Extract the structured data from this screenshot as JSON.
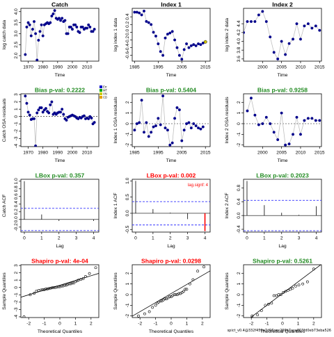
{
  "footer_text": "spict_v0.4@332f459e7d96cec206b7aca803fd0eb73eba526",
  "colors": {
    "pass": "#228B22",
    "fail": "#FF0000",
    "title_plain": "#000000",
    "points": "#00008B",
    "line": "#BFBFBF",
    "ci": "#3333FF",
    "lag_note": "#FF0000"
  },
  "chart_data": [
    {
      "type": "scatter",
      "panel": "catch-data",
      "title": "Catch",
      "title_status": "plain",
      "xlabel": "Time",
      "ylabel": "log catch data",
      "xlim": [
        1965,
        2018
      ],
      "ylim": [
        1.75,
        4.15
      ],
      "xticks": [
        1970,
        1980,
        1990,
        2000,
        2010
      ],
      "yticks": [
        2.0,
        2.5,
        3.0,
        3.5,
        4.0
      ],
      "connect": true,
      "x": [
        1968,
        1969,
        1970,
        1971,
        1972,
        1973,
        1974,
        1975,
        1976,
        1977,
        1978,
        1979,
        1980,
        1981,
        1982,
        1983,
        1984,
        1985,
        1986,
        1987,
        1988,
        1989,
        1990,
        1991,
        1992,
        1993,
        1994,
        1995,
        1996,
        1997,
        1998,
        1999,
        2000,
        2001,
        2002,
        2003,
        2004,
        2005,
        2006,
        2007,
        2008,
        2009,
        2010,
        2011,
        2012,
        2013,
        2014,
        2015
      ],
      "y": [
        2.05,
        3.3,
        3.5,
        3.4,
        2.9,
        3.2,
        3.55,
        3.0,
        1.8,
        2.7,
        3.1,
        3.4,
        2.9,
        3.4,
        3.45,
        3.5,
        3.45,
        3.5,
        3.8,
        3.9,
        4.05,
        3.7,
        3.65,
        3.7,
        3.6,
        3.7,
        3.55,
        3.6,
        3.0,
        3.0,
        3.3,
        3.3,
        3.2,
        3.4,
        3.4,
        3.3,
        3.1,
        3.05,
        3.3,
        3.3,
        3.2,
        3.25,
        3.25,
        3.4,
        3.3,
        3.1,
        3.1,
        3.2
      ]
    },
    {
      "type": "scatter",
      "panel": "index1-data",
      "title": "Index 1",
      "title_status": "plain",
      "xlabel": "Time",
      "ylabel": "log index 1 data",
      "xlim": [
        1984,
        2017
      ],
      "ylim": [
        -0.75,
        0.62
      ],
      "xticks": [
        1985,
        1995,
        2005,
        2015
      ],
      "yticks": [
        -0.6,
        -0.4,
        -0.2,
        0.0,
        0.2,
        0.4
      ],
      "connect": true,
      "x": [
        1985,
        1986,
        1987,
        1988,
        1989,
        1990,
        1991,
        1992,
        1993,
        1994,
        1995,
        1996,
        1997,
        1998,
        1999,
        2000,
        2001,
        2002,
        2003,
        2004,
        2005,
        2006,
        2007,
        2008,
        2009,
        2010,
        2011,
        2012,
        2013,
        2014
      ],
      "y": [
        0.52,
        0.52,
        0.5,
        0.45,
        0.55,
        0.28,
        0.25,
        0.2,
        0.0,
        -0.1,
        -0.3,
        -0.5,
        -0.6,
        -0.15,
        -0.05,
        -0.02,
        0.02,
        -0.2,
        -0.4,
        -0.6,
        -0.7,
        -0.45,
        -0.3,
        -0.4,
        -0.35,
        -0.32,
        -0.35,
        -0.3,
        -0.32,
        -0.28
      ],
      "highlight": [
        {
          "x": 2015,
          "y": -0.25,
          "color": "#D4C400"
        }
      ]
    },
    {
      "type": "scatter",
      "panel": "index2-data",
      "title": "Index 2",
      "title_status": "plain",
      "xlabel": "Time",
      "ylabel": "log index 2 data",
      "xlim": [
        1995,
        2015.5
      ],
      "ylim": [
        3.55,
        4.75
      ],
      "xticks": [
        2000,
        2005,
        2010,
        2015
      ],
      "yticks": [
        3.6,
        3.8,
        4.0,
        4.2,
        4.4
      ],
      "connect": true,
      "x": [
        1995,
        1996,
        1997,
        1998,
        1999,
        2000,
        2001,
        2002,
        2003,
        2004,
        2005,
        2006,
        2007,
        2008,
        2009,
        2010,
        2011,
        2012,
        2013,
        2014,
        2015
      ],
      "y": [
        4.2,
        4.45,
        4.45,
        4.45,
        4.6,
        4.68,
        4.45,
        4.1,
        3.75,
        3.6,
        4.0,
        3.7,
        3.95,
        4.05,
        4.4,
        4.05,
        4.35,
        4.4,
        4.3,
        4.35,
        4.25
      ]
    },
    {
      "type": "scatter",
      "panel": "catch-osa",
      "title": "Bias p-val: 0.2222",
      "title_status": "pass",
      "xlabel": "Time",
      "ylabel": "Catch OSA residuals",
      "xlim": [
        1965,
        2018
      ],
      "ylim": [
        -4.1,
        3.1
      ],
      "xticks": [
        1970,
        1980,
        1990,
        2000,
        2010
      ],
      "yticks": [
        -4,
        -3,
        -2,
        -1,
        0,
        1,
        2,
        3
      ],
      "connect": true,
      "zero_line": true,
      "legend": [
        "Err",
        "MT",
        "VN",
        "CD"
      ],
      "legend_colors": [
        "#0000CC",
        "#00AA00",
        "#CCCC00",
        "#E69F00"
      ],
      "x": [
        1968,
        1969,
        1970,
        1971,
        1972,
        1973,
        1974,
        1975,
        1976,
        1977,
        1978,
        1979,
        1980,
        1981,
        1982,
        1983,
        1984,
        1985,
        1986,
        1987,
        1988,
        1989,
        1990,
        1991,
        1992,
        1993,
        1994,
        1995,
        1996,
        1997,
        1998,
        1999,
        2000,
        2001,
        2002,
        2003,
        2004,
        2005,
        2006,
        2007,
        2008,
        2009,
        2010,
        2011,
        2012,
        2013,
        2014,
        2015
      ],
      "y": [
        2.8,
        1.8,
        0.6,
        0.2,
        -0.4,
        -0.3,
        -0.3,
        -4.0,
        0.5,
        0.9,
        1.2,
        1.2,
        0.6,
        0.9,
        1.1,
        0.7,
        0.5,
        1.6,
        2.0,
        0.3,
        0.5,
        0.3,
        0.5,
        0.6,
        0.6,
        1.0,
        0.3,
        -0.3,
        -0.5,
        -0.1,
        0.0,
        0.1,
        0.2,
        0.1,
        0.0,
        -0.2,
        -0.3,
        -0.1,
        -0.2,
        0.0,
        0.1,
        -0.3,
        -0.2,
        -0.3,
        0.0,
        -0.2,
        -1.0,
        -0.8
      ]
    },
    {
      "type": "scatter",
      "panel": "index1-osa",
      "title": "Bias p-val: 0.5404",
      "title_status": "pass",
      "xlabel": "Time",
      "ylabel": "Index 1 OSA residuals",
      "xlim": [
        1984,
        2017
      ],
      "ylim": [
        -2.15,
        2.8
      ],
      "xticks": [
        1985,
        1995,
        2005,
        2015
      ],
      "yticks": [
        -2,
        -1,
        0,
        1,
        2
      ],
      "connect": true,
      "zero_line": true,
      "x": [
        1985,
        1986,
        1987,
        1988,
        1989,
        1990,
        1991,
        1992,
        1993,
        1994,
        1995,
        1996,
        1997,
        1998,
        1999,
        2000,
        2001,
        2002,
        2003,
        2004,
        2005,
        2006,
        2007,
        2008,
        2009,
        2010,
        2011,
        2012,
        2013,
        2014
      ],
      "y": [
        -0.6,
        0.0,
        0.1,
        2.2,
        -0.8,
        0.1,
        -1.2,
        -0.8,
        -0.3,
        -0.2,
        0.5,
        -0.1,
        2.6,
        -0.4,
        -0.6,
        -2.0,
        -1.8,
        0.5,
        1.5,
        1.3,
        -1.6,
        -0.6,
        0.0,
        0.1,
        -0.4,
        0.0,
        -0.2,
        -0.4,
        -0.5,
        -0.3
      ]
    },
    {
      "type": "scatter",
      "panel": "index2-osa",
      "title": "Bias p-val: 0.9258",
      "title_status": "pass",
      "xlabel": "Time",
      "ylabel": "Index 2 OSA residuals",
      "xlim": [
        1995,
        2015.5
      ],
      "ylim": [
        -2.15,
        2.8
      ],
      "xticks": [
        2000,
        2005,
        2010,
        2015
      ],
      "yticks": [
        -2,
        -1,
        0,
        1,
        2
      ],
      "connect": true,
      "zero_line": true,
      "x": [
        1996,
        1997,
        1998,
        1999,
        2000,
        2001,
        2002,
        2003,
        2004,
        2005,
        2006,
        2007,
        2008,
        2009,
        2010,
        2011,
        2012,
        2013,
        2014,
        2015
      ],
      "y": [
        1.2,
        2.4,
        0.8,
        -0.1,
        0.0,
        0.6,
        0.0,
        -0.8,
        -1.5,
        1.0,
        -2.0,
        -1.9,
        -1.0,
        0.6,
        -1.0,
        0.3,
        0.5,
        0.5,
        0.3,
        0.3
      ]
    },
    {
      "type": "bar",
      "panel": "catch-acf",
      "title": "LBox p-val: 0.357",
      "title_status": "pass",
      "xlabel": "Lag",
      "ylabel": "Catch ACF",
      "xlim": [
        -0.2,
        4.3
      ],
      "ylim": [
        -0.33,
        1.05
      ],
      "xticks": [
        0,
        1,
        2,
        3,
        4
      ],
      "yticks": [
        -0.2,
        0.0,
        0.2,
        0.4,
        0.6,
        0.8,
        1.0
      ],
      "lags": [
        0,
        1,
        2,
        3,
        4
      ],
      "values": [
        1.0,
        0.13,
        -0.04,
        0.0,
        -0.04
      ],
      "ci": [
        0.29,
        -0.29
      ]
    },
    {
      "type": "bar",
      "panel": "index1-acf",
      "title": "LBox p-val: 0.002",
      "title_status": "fail",
      "xlabel": "Lag",
      "ylabel": "Index 1 ACF",
      "xlim": [
        -0.2,
        4.3
      ],
      "ylim": [
        -0.58,
        1.05
      ],
      "xticks": [
        0,
        1,
        2,
        3,
        4
      ],
      "yticks": [
        -0.5,
        0.0,
        0.5,
        1.0
      ],
      "lags": [
        0,
        1,
        2,
        3,
        4
      ],
      "values": [
        1.0,
        0.13,
        0.02,
        -0.18,
        -0.55
      ],
      "ci": [
        0.36,
        -0.36
      ],
      "note": "lag.signf: 4"
    },
    {
      "type": "bar",
      "panel": "index2-acf",
      "title": "LBox p-val: 0.2023",
      "title_status": "pass",
      "xlabel": "Lag",
      "ylabel": "Index 2 ACF",
      "xlim": [
        -0.2,
        4.3
      ],
      "ylim": [
        -0.48,
        1.05
      ],
      "xticks": [
        0,
        1,
        2,
        3,
        4
      ],
      "yticks": [
        -0.4,
        0.0,
        0.4,
        0.8
      ],
      "lags": [
        0,
        1,
        2,
        3,
        4
      ],
      "values": [
        1.0,
        0.3,
        0.08,
        0.02,
        0.27
      ],
      "ci": [
        0.44,
        -0.44
      ]
    },
    {
      "type": "scatter",
      "panel": "catch-qq",
      "title": "Shapiro p-val: 4e-04",
      "title_status": "fail",
      "xlabel": "Theoretical Quantiles",
      "ylabel": "Sample Quantiles",
      "xlim": [
        -2.5,
        2.5
      ],
      "ylim": [
        -4.1,
        3.1
      ],
      "xticks": [
        -2,
        -1,
        0,
        1,
        2
      ],
      "yticks": [
        -4,
        -3,
        -2,
        -1,
        0,
        1,
        2,
        3
      ],
      "connect": false,
      "qq_line": [
        0.3,
        0.65
      ],
      "x": [
        -2.3,
        -1.9,
        -1.65,
        -1.5,
        -1.35,
        -1.2,
        -1.1,
        -1.0,
        -0.9,
        -0.8,
        -0.7,
        -0.6,
        -0.5,
        -0.4,
        -0.3,
        -0.2,
        -0.1,
        0.0,
        0.1,
        0.2,
        0.3,
        0.4,
        0.5,
        0.6,
        0.7,
        0.8,
        0.9,
        1.0,
        1.1,
        1.2,
        1.35,
        1.5,
        1.65,
        1.9,
        2.3
      ],
      "y": [
        -4.0,
        -1.0,
        -0.8,
        -0.5,
        -0.4,
        -0.35,
        -0.3,
        -0.3,
        -0.2,
        -0.2,
        -0.15,
        -0.1,
        -0.05,
        0.0,
        0.0,
        0.05,
        0.1,
        0.1,
        0.2,
        0.2,
        0.3,
        0.3,
        0.4,
        0.5,
        0.5,
        0.6,
        0.6,
        0.8,
        0.9,
        1.0,
        1.1,
        1.2,
        1.5,
        1.9,
        2.7
      ]
    },
    {
      "type": "scatter",
      "panel": "index1-qq",
      "title": "Shapiro p-val: 0.0298",
      "title_status": "fail",
      "xlabel": "Theoretical Quantiles",
      "ylabel": "Sample Quantiles",
      "xlim": [
        -2.5,
        2.5
      ],
      "ylim": [
        -2.15,
        2.8
      ],
      "xticks": [
        -2,
        -1,
        0,
        1,
        2
      ],
      "yticks": [
        -2,
        -1,
        0,
        1,
        2
      ],
      "connect": false,
      "qq_line": [
        0.1,
        0.85
      ],
      "x": [
        -2.1,
        -1.7,
        -1.4,
        -1.2,
        -1.0,
        -0.9,
        -0.8,
        -0.7,
        -0.6,
        -0.5,
        -0.4,
        -0.3,
        -0.2,
        -0.1,
        0.0,
        0.1,
        0.2,
        0.3,
        0.4,
        0.5,
        0.6,
        0.7,
        0.8,
        0.9,
        1.0,
        1.2,
        1.4,
        1.7,
        2.1
      ],
      "y": [
        -2.0,
        -1.8,
        -1.6,
        -1.2,
        -1.0,
        -0.8,
        -0.7,
        -0.6,
        -0.6,
        -0.5,
        -0.4,
        -0.4,
        -0.3,
        -0.2,
        -0.2,
        -0.1,
        0.0,
        0.0,
        0.0,
        0.1,
        0.1,
        0.2,
        0.3,
        0.5,
        0.5,
        1.0,
        1.4,
        2.2,
        2.6
      ]
    },
    {
      "type": "scatter",
      "panel": "index2-qq",
      "title": "Shapiro p-val: 0.5261",
      "title_status": "pass",
      "xlabel": "Theoretical Quantiles",
      "ylabel": "Sample Quantiles",
      "xlim": [
        -2.5,
        2.5
      ],
      "ylim": [
        -2.15,
        2.8
      ],
      "xticks": [
        -2,
        -1,
        0,
        1,
        2
      ],
      "yticks": [
        -2,
        -1,
        0,
        1,
        2
      ],
      "connect": false,
      "qq_line": [
        0.1,
        1.1
      ],
      "x": [
        -1.95,
        -1.6,
        -1.35,
        -1.1,
        -0.9,
        -0.7,
        -0.55,
        -0.4,
        -0.25,
        -0.1,
        0.05,
        0.2,
        0.35,
        0.5,
        0.65,
        0.85,
        1.05,
        1.3,
        1.6,
        2.0
      ],
      "y": [
        -2.0,
        -1.9,
        -1.5,
        -1.0,
        -0.9,
        -0.8,
        -0.1,
        -0.1,
        0.0,
        0.0,
        0.2,
        0.3,
        0.4,
        0.5,
        0.6,
        0.8,
        0.9,
        1.0,
        1.2,
        2.4
      ]
    }
  ]
}
